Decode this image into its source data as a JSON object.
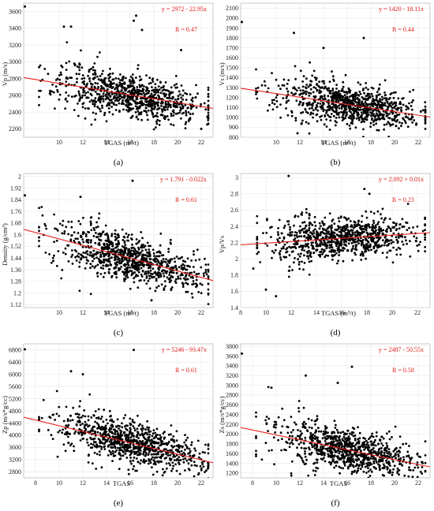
{
  "figure": {
    "colors": {
      "points": "#000000",
      "fit_line": "#e8211b",
      "annotation": "#e0211b",
      "grid": "#e8e8e8",
      "frame": "#bbbbbb"
    }
  },
  "chart_data": [
    {
      "type": "scatter",
      "panel_label": "(a)",
      "xlabel": "TGAS (m³/t)",
      "ylabel": "Vp (m/s)",
      "xlim": [
        7,
        23
      ],
      "ylim": [
        2100,
        3700
      ],
      "xticks": [
        10,
        12,
        14,
        16,
        18,
        20,
        22
      ],
      "yticks": [
        2200,
        2400,
        2600,
        2800,
        3000,
        3200,
        3400,
        3600
      ],
      "tick_labels_x": [
        "10",
        "12",
        "14",
        "16",
        "18",
        "20",
        "22"
      ],
      "tick_labels_y": [
        "2200",
        "2400",
        "2600",
        "2800",
        "3000",
        "3200",
        "3400",
        "3600"
      ],
      "regression": {
        "intercept": 2972,
        "slope": -22.95,
        "equation": "y = 2972 - 22.95x",
        "r": "R = 0.47"
      },
      "cloud": {
        "x_center": 16.0,
        "x_spread": 3.0,
        "resid_sd": 120,
        "n": 900,
        "seed": 11
      },
      "outliers": [
        {
          "x": 7.1,
          "y": 3660
        },
        {
          "x": 16.5,
          "y": 3550
        },
        {
          "x": 16.3,
          "y": 3490
        },
        {
          "x": 11.0,
          "y": 3420
        },
        {
          "x": 10.4,
          "y": 3420
        },
        {
          "x": 17.0,
          "y": 3380
        },
        {
          "x": 20.3,
          "y": 3140
        },
        {
          "x": 22.0,
          "y": 2200
        }
      ]
    },
    {
      "type": "scatter",
      "panel_label": "(b)",
      "xlabel": "TGAS (m³/t)",
      "ylabel": "Vs (m/s)",
      "xlim": [
        7,
        23
      ],
      "ylim": [
        800,
        2150
      ],
      "xticks": [
        10,
        12,
        14,
        16,
        18,
        20,
        22
      ],
      "yticks": [
        800,
        900,
        1000,
        1100,
        1200,
        1300,
        1400,
        1500,
        1600,
        1700,
        1800,
        1900,
        2000,
        2100
      ],
      "tick_labels_x": [
        "10",
        "12",
        "14",
        "16",
        "18",
        "20",
        "22"
      ],
      "tick_labels_y": [
        "800",
        "900",
        "1000",
        "1100",
        "1200",
        "1300",
        "1400",
        "1500",
        "1600",
        "1700",
        "1800",
        "1900",
        "2000",
        "2100"
      ],
      "regression": {
        "intercept": 1420,
        "slope": -18.11,
        "equation": "y = 1420 - 18.11x",
        "r": "R = 0.44"
      },
      "cloud": {
        "x_center": 16.0,
        "x_spread": 3.0,
        "resid_sd": 95,
        "n": 900,
        "seed": 23
      },
      "outliers": [
        {
          "x": 7.1,
          "y": 1960
        },
        {
          "x": 11.5,
          "y": 1850
        },
        {
          "x": 17.4,
          "y": 1800
        },
        {
          "x": 14.0,
          "y": 1700
        },
        {
          "x": 11.8,
          "y": 840
        },
        {
          "x": 21.5,
          "y": 1000
        }
      ]
    },
    {
      "type": "scatter",
      "panel_label": "(c)",
      "xlabel": "TGAS (m³/t)",
      "ylabel": "Density (g/cm³)",
      "xlim": [
        7,
        23
      ],
      "ylim": [
        1.1,
        2.02
      ],
      "xticks": [
        10,
        12,
        14,
        16,
        18,
        20,
        22
      ],
      "yticks": [
        1.12,
        1.2,
        1.28,
        1.36,
        1.44,
        1.52,
        1.6,
        1.68,
        1.76,
        1.84,
        1.92,
        2
      ],
      "tick_labels_x": [
        "10",
        "12",
        "14",
        "16",
        "18",
        "20",
        "22"
      ],
      "tick_labels_y": [
        "1.12",
        "1.2",
        "1.28",
        "1.36",
        "1.44",
        "1.52",
        "1.6",
        "1.68",
        "1.76",
        "1.84",
        "1.92",
        "2"
      ],
      "regression": {
        "intercept": 1.791,
        "slope": -0.022,
        "equation": "y = 1.791 - 0.022x",
        "r": "R = 0.61"
      },
      "cloud": {
        "x_center": 16.0,
        "x_spread": 3.0,
        "resid_sd": 0.075,
        "n": 900,
        "seed": 37
      },
      "outliers": [
        {
          "x": 7.1,
          "y": 1.87
        },
        {
          "x": 16.2,
          "y": 1.97
        },
        {
          "x": 11.8,
          "y": 1.86
        },
        {
          "x": 17.8,
          "y": 1.15
        },
        {
          "x": 9.5,
          "y": 1.42
        }
      ]
    },
    {
      "type": "scatter",
      "panel_label": "(d)",
      "xlabel": "TGAS (m³/t)",
      "ylabel": "Vp/Vs",
      "xlim": [
        8,
        23
      ],
      "ylim": [
        1.4,
        3.05
      ],
      "xticks": [
        8,
        10,
        12,
        14,
        16,
        18,
        20,
        22
      ],
      "yticks": [
        1.4,
        1.6,
        1.8,
        2,
        2.2,
        2.4,
        2.6,
        2.8,
        3
      ],
      "tick_labels_x": [
        "8",
        "10",
        "12",
        "14",
        "16",
        "18",
        "20",
        "22"
      ],
      "tick_labels_y": [
        "1.4",
        "1.6",
        "1.8",
        "2",
        "2.2",
        "2.4",
        "2.6",
        "2.8",
        "3"
      ],
      "regression": {
        "intercept": 2.092,
        "slope": 0.01,
        "equation": "y = 2.092 + 0.01x",
        "r": "R = 0.23"
      },
      "cloud": {
        "x_center": 16.0,
        "x_spread": 3.0,
        "resid_sd": 0.12,
        "n": 900,
        "seed": 51
      },
      "outliers": [
        {
          "x": 11.8,
          "y": 3.02
        },
        {
          "x": 10.8,
          "y": 1.54
        },
        {
          "x": 10.0,
          "y": 1.62
        },
        {
          "x": 9.0,
          "y": 1.88
        },
        {
          "x": 17.8,
          "y": 2.86
        },
        {
          "x": 18.2,
          "y": 2.8
        }
      ]
    },
    {
      "type": "scatter",
      "panel_label": "(e)",
      "xlabel": "TGAS",
      "ylabel": "Zp (m/s*g/cc)",
      "xlim": [
        7,
        23
      ],
      "ylim": [
        2600,
        7000
      ],
      "xticks": [
        8,
        10,
        12,
        14,
        16,
        18,
        20,
        22
      ],
      "yticks": [
        2800,
        3200,
        3600,
        4000,
        4400,
        4800,
        5200,
        5600,
        6000,
        6400,
        6800
      ],
      "tick_labels_x": [
        "8",
        "10",
        "12",
        "14",
        "16",
        "18",
        "20",
        "22"
      ],
      "tick_labels_y": [
        "2800",
        "3200",
        "3600",
        "4000",
        "4400",
        "4800",
        "5200",
        "5600",
        "6000",
        "6400",
        "6800"
      ],
      "regression": {
        "intercept": 5246,
        "slope": -93.47,
        "equation": "y = 5246 - 93.47x",
        "r": "R = 0.61"
      },
      "cloud": {
        "x_center": 16.0,
        "x_spread": 3.0,
        "resid_sd": 330,
        "n": 900,
        "seed": 67
      },
      "outliers": [
        {
          "x": 7.1,
          "y": 6820
        },
        {
          "x": 16.3,
          "y": 6800
        },
        {
          "x": 11.0,
          "y": 6100
        },
        {
          "x": 12.0,
          "y": 6000
        },
        {
          "x": 21.8,
          "y": 2750
        }
      ]
    },
    {
      "type": "scatter",
      "panel_label": "(f)",
      "xlabel": "TGAS",
      "ylabel": "Zs (m/s*g/cc)",
      "xlim": [
        7,
        23
      ],
      "ylim": [
        1100,
        3850
      ],
      "xticks": [
        8,
        10,
        12,
        14,
        16,
        18,
        20,
        22
      ],
      "yticks": [
        1200,
        1400,
        1600,
        1800,
        2000,
        2200,
        2400,
        2600,
        2800,
        3000,
        3200,
        3400,
        3600,
        3800
      ],
      "tick_labels_x": [
        "8",
        "10",
        "12",
        "14",
        "16",
        "18",
        "20",
        "22"
      ],
      "tick_labels_y": [
        "1200",
        "1400",
        "1600",
        "1800",
        "2000",
        "2200",
        "2400",
        "2600",
        "2800",
        "3000",
        "3200",
        "3400",
        "3600",
        "3800"
      ],
      "regression": {
        "intercept": 2487,
        "slope": -50.55,
        "equation": "y = 2487 - 50.55x",
        "r": "R = 0.58"
      },
      "cloud": {
        "x_center": 16.0,
        "x_spread": 3.0,
        "resid_sd": 200,
        "n": 900,
        "seed": 83
      },
      "outliers": [
        {
          "x": 7.1,
          "y": 3650
        },
        {
          "x": 16.4,
          "y": 3380
        },
        {
          "x": 15.2,
          "y": 3050
        },
        {
          "x": 12.5,
          "y": 3200
        },
        {
          "x": 9.6,
          "y": 2950
        }
      ]
    }
  ]
}
